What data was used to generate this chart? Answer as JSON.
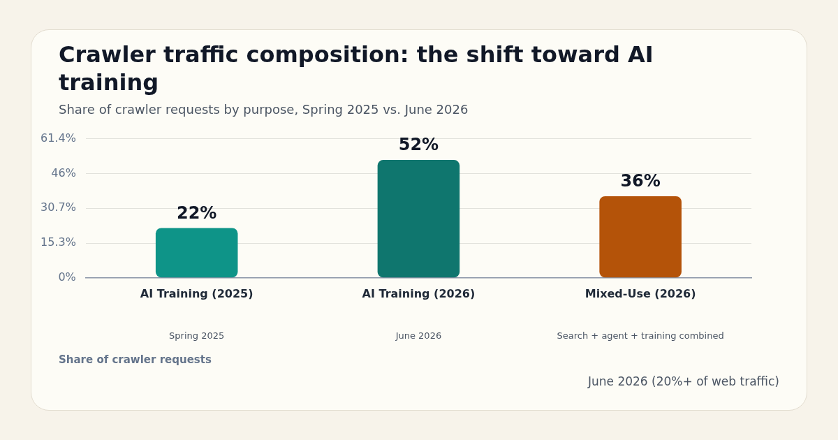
{
  "chart_data": {
    "type": "bar",
    "title": "Crawler traffic composition: the shift toward AI training",
    "subtitle": "Share of crawler requests by purpose, Spring 2025 vs. June 2026",
    "categories": [
      "AI Training (2025)",
      "AI Training (2026)",
      "Mixed-Use (2026)"
    ],
    "values": [
      22,
      52,
      36
    ],
    "colors": [
      "#0e9488",
      "#0f766e",
      "#b45309"
    ],
    "value_labels": [
      "22%",
      "52%",
      "36%"
    ],
    "ylim": [
      0,
      61.4
    ],
    "yticks": [
      {
        "value": 0,
        "label": "0%"
      },
      {
        "value": 15.3,
        "label": "15.3%"
      },
      {
        "value": 30.7,
        "label": "30.7%"
      },
      {
        "value": 46,
        "label": "46%"
      },
      {
        "value": 61.4,
        "label": "61.4%"
      }
    ],
    "grid": "y",
    "legend": false,
    "annotations": [
      "Spring 2025",
      "June 2026",
      "Search + agent + training combined",
      "Share of crawler requests",
      "June 2026 (20%+ of web traffic)"
    ]
  }
}
